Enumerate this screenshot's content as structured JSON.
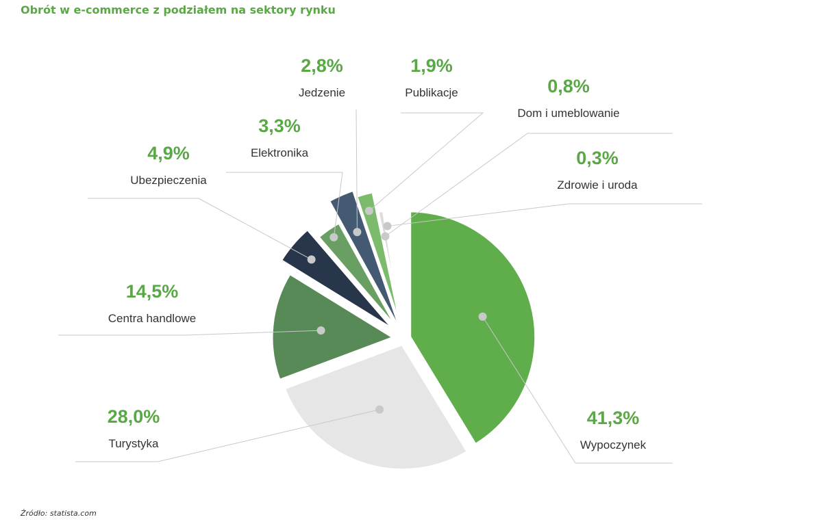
{
  "chart_data": {
    "type": "pie",
    "title": "Obrót w e-commerce z podziałem na sektory rynku",
    "source": "Źródło: statista.com",
    "slices": [
      {
        "label": "Wypoczynek",
        "value_text": "41,3%",
        "value": 41.3,
        "color": "#5fae4b"
      },
      {
        "label": "Turystyka",
        "value_text": "28,0%",
        "value": 28.0,
        "color": "#e6e6e6"
      },
      {
        "label": "Centra handlowe",
        "value_text": "14,5%",
        "value": 14.5,
        "color": "#578a57"
      },
      {
        "label": "Ubezpieczenia",
        "value_text": "4,9%",
        "value": 4.9,
        "color": "#27364a"
      },
      {
        "label": "Elektronika",
        "value_text": "3,3%",
        "value": 3.3,
        "color": "#6a9f63"
      },
      {
        "label": "Jedzenie",
        "value_text": "2,8%",
        "value": 2.8,
        "color": "#445a73"
      },
      {
        "label": "Publikacje",
        "value_text": "1,9%",
        "value": 1.9,
        "color": "#7dbb6c"
      },
      {
        "label": "Dom i umeblowanie",
        "value_text": "0,8%",
        "value": 0.8,
        "color": "#dcdcdc"
      },
      {
        "label": "Zdrowie i uroda",
        "value_text": "0,3%",
        "value": 0.3,
        "color": "#3e7a42"
      }
    ],
    "colors": {
      "title": "#5aa845",
      "value": "#5aa845",
      "label": "#333333",
      "leader": "#c8c8c8",
      "dot": "#c9c9c9"
    }
  }
}
